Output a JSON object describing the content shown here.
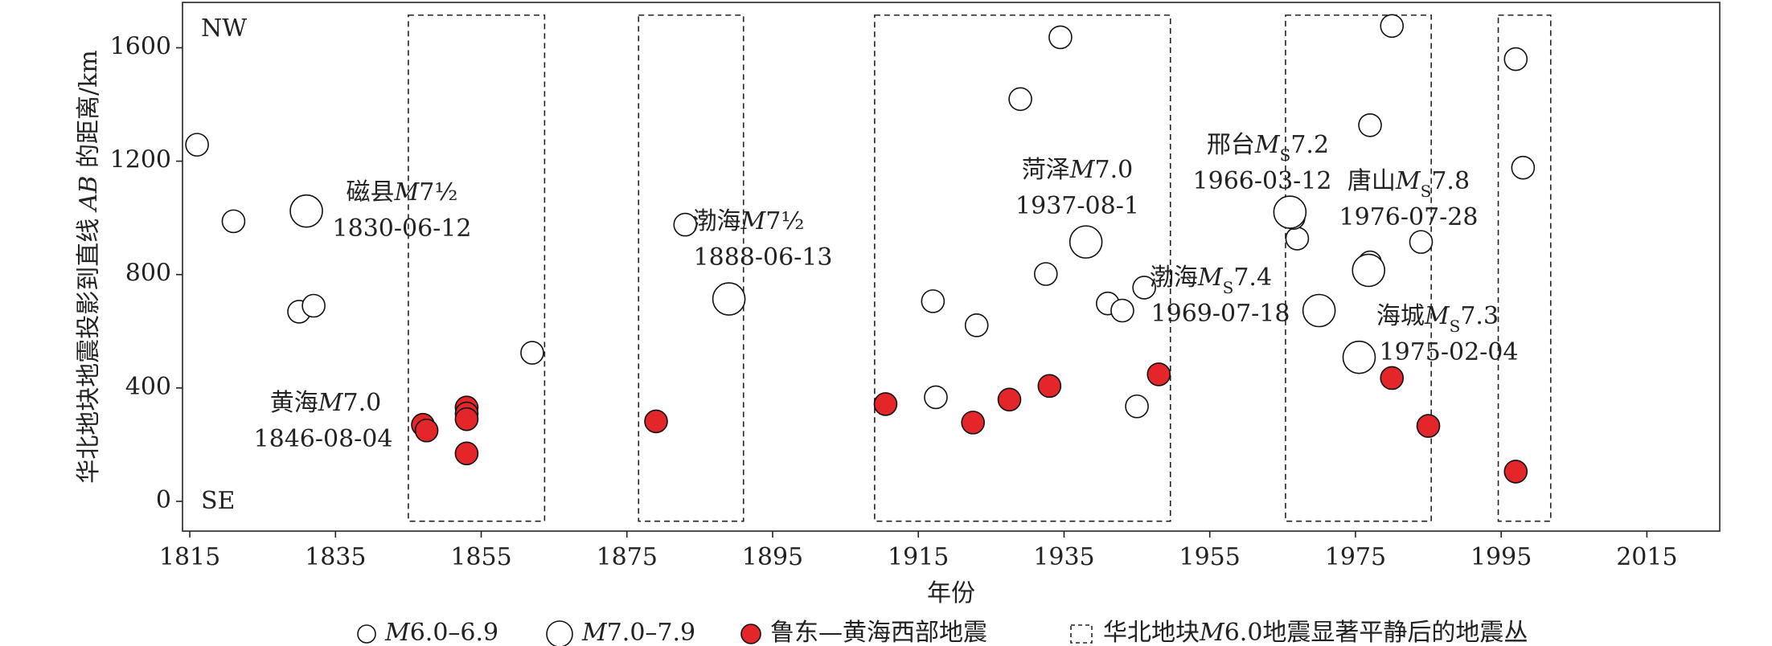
{
  "chart_data": {
    "type": "scatter",
    "xlabel": "年份",
    "ylabel": "华北地块地震投影到直线 AB 的距离/km",
    "xlim": [
      1814,
      2025
    ],
    "ylim": [
      -105,
      1760
    ],
    "xticks": [
      1815,
      1835,
      1855,
      1875,
      1895,
      1915,
      1935,
      1955,
      1975,
      1995,
      2015
    ],
    "yticks": [
      0,
      400,
      800,
      1200,
      1600
    ],
    "series": [
      {
        "name": "M6.0–6.9",
        "color": "#ffffff",
        "x": [
          1816,
          1821,
          1830,
          1832,
          1862,
          1883,
          1917,
          1917.4,
          1923,
          1929,
          1932.5,
          1934.5,
          1938,
          1941,
          1943,
          1946,
          1945,
          1967,
          1966.5,
          1977,
          1977,
          1977,
          1980,
          1984,
          1997,
          1998
        ],
        "values": [
          1258,
          988,
          669,
          690,
          524,
          976,
          706,
          367,
          621,
          1419,
          802,
          1637,
          915,
          698,
          673,
          754,
          335,
          927,
          1000,
          1327,
          843,
          815,
          1677,
          915,
          1560,
          1177
        ]
      },
      {
        "name": "M7.0–7.9",
        "color": "#ffffff",
        "x": [
          1831,
          1889,
          1970,
          1975.5,
          1966,
          1938,
          1976.8
        ],
        "values": [
          1024,
          714,
          673,
          508,
          1020,
          915,
          815
        ]
      },
      {
        "name": "鲁东—黄海西部地震",
        "color": "#e3262a",
        "x": [
          1847,
          1847.5,
          1853,
          1853,
          1853,
          1853,
          1879,
          1910.5,
          1922.5,
          1927.5,
          1933,
          1948,
          1980,
          1985,
          1997
        ],
        "values": [
          270,
          250,
          331,
          310,
          290,
          169,
          282,
          343,
          278,
          359,
          407,
          448,
          435,
          266,
          105
        ]
      }
    ],
    "clusters": {
      "name": "华北地块M6.0地震显著平静后的地震丛",
      "y_range": [
        -70,
        1715
      ],
      "x_ranges": [
        [
          1845,
          1863.7
        ],
        [
          1876.6,
          1891
        ],
        [
          1909,
          1949.6
        ],
        [
          1965.4,
          1985.4
        ],
        [
          1994.6,
          2001.8
        ]
      ]
    },
    "annotations": [
      {
        "label": "磁县M7½",
        "date": "1830-06-12"
      },
      {
        "label": "渤海M7½",
        "date": "1888-06-13"
      },
      {
        "label": "黄海M7.0",
        "date": "1846-08-04"
      },
      {
        "label": "菏泽M7.0",
        "date": "1937-08-1"
      },
      {
        "label": "邢台MS7.2",
        "date": "1966-03-12"
      },
      {
        "label": "唐山MS7.8",
        "date": "1976-07-28"
      },
      {
        "label": "渤海MS7.4",
        "date": "1969-07-18"
      },
      {
        "label": "海城MS7.3",
        "date": "1975-02-04"
      }
    ],
    "corner_labels": [
      "NW",
      "SE"
    ]
  }
}
